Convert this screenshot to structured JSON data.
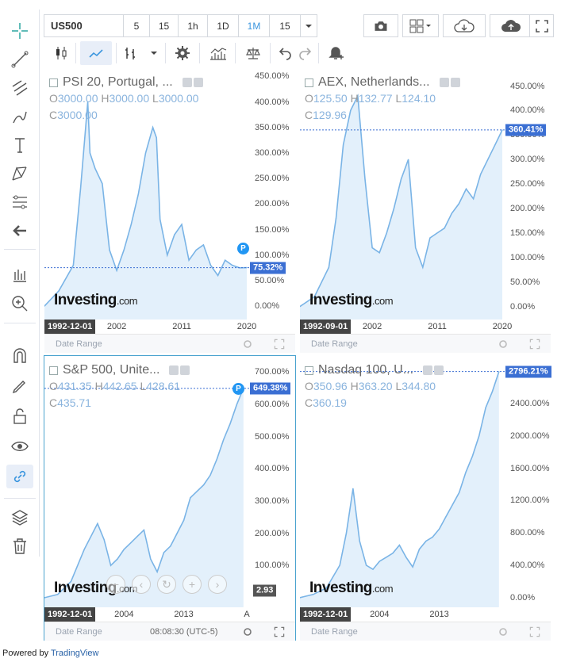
{
  "toolbar": {
    "symbol": "US500",
    "intervals": [
      "5",
      "15",
      "1h",
      "1D",
      "1M"
    ],
    "active_interval": "1M",
    "compare_label": "15",
    "icons": {
      "snapshot": "camera-icon",
      "layout": "grid-layout-icon",
      "load": "cloud-download-icon",
      "save": "cloud-upload-icon",
      "fullscreen": "fullscreen-icon",
      "candles": "candlestick-icon",
      "area": "area-chart-icon",
      "bars": "bars-icon",
      "settings": "gear-icon",
      "indicators": "indicators-icon",
      "compare": "scales-icon",
      "undo": "undo-icon",
      "redo": "redo-icon",
      "alert": "add-alert-icon"
    }
  },
  "left_tools": [
    "crosshair-icon",
    "trend-line-icon",
    "fib-icon",
    "brush-icon",
    "text-icon",
    "pattern-icon",
    "measure-icon",
    "back-arrow-icon",
    "zoom-bars-icon",
    "zoom-in-icon",
    "magnet-icon",
    "lock-edit-icon",
    "unlock-icon",
    "eye-icon",
    "link-icon",
    "layers-icon",
    "trash-icon"
  ],
  "panes": [
    {
      "title": "PSI 20, Portugal, ...",
      "ohlc": {
        "O": "3000.00",
        "H": "3000.00",
        "L": "3000.00",
        "C": "3000.00"
      },
      "last_value_label": "75.32%",
      "x_start_label": "1992-12-01",
      "date_range_label": "Date Range",
      "logo": "Investing",
      "logo_suffix": ".com",
      "show_p_badge": true,
      "p_badge": "P"
    },
    {
      "title": "AEX, Netherlands...",
      "ohlc": {
        "O": "125.50",
        "H": "132.77",
        "L": "124.10",
        "C": "129.96"
      },
      "last_value_label": "360.41%",
      "x_start_label": "1992-09-01",
      "date_range_label": "Date Range",
      "logo": "Investing",
      "logo_suffix": ".com",
      "show_p_badge": false
    },
    {
      "title": "S&P 500, Unite...",
      "ohlc": {
        "O": "431.35",
        "H": "442.65",
        "L": "428.61",
        "C": "435.71"
      },
      "last_value_label": "649.38%",
      "crosshair_label": "2.93",
      "x_start_label": "1992-12-01",
      "date_range_label": "Date Range",
      "time_label": "08:08:30 (UTC-5)",
      "extra_x_label": "A",
      "logo": "Investing",
      "logo_suffix": ".com",
      "show_p_badge": true,
      "p_badge": "P"
    },
    {
      "title": "Nasdaq 100, U...",
      "ohlc": {
        "O": "350.96",
        "H": "363.20",
        "L": "344.80",
        "C": "360.19"
      },
      "last_value_label": "2796.21%",
      "x_start_label": "1992-12-01",
      "date_range_label": "Date Range",
      "logo": "Investing",
      "logo_suffix": ".com",
      "show_p_badge": false
    }
  ],
  "chart_data": [
    {
      "type": "area",
      "title": "PSI 20, Portugal, ...",
      "x": [
        1992,
        1994,
        1996,
        1997,
        1998,
        1998.3,
        1999,
        2000,
        2001,
        2002,
        2003,
        2004,
        2005,
        2006,
        2007,
        2007.5,
        2008,
        2009,
        2010,
        2011,
        2012,
        2013,
        2014,
        2015,
        2016,
        2017,
        2018,
        2019,
        2020
      ],
      "y": [
        0,
        30,
        80,
        230,
        400,
        300,
        270,
        240,
        110,
        70,
        110,
        160,
        220,
        300,
        350,
        330,
        170,
        100,
        140,
        160,
        90,
        110,
        120,
        80,
        60,
        90,
        80,
        75,
        75.32
      ],
      "y_ticks": [
        "0.00%",
        "50.00%",
        "100.00%",
        "150.00%",
        "200.00%",
        "250.00%",
        "300.00%",
        "350.00%",
        "400.00%",
        "450.00%"
      ],
      "ylim": [
        -20,
        460
      ],
      "x_ticks": [
        {
          "year": 2002,
          "label": "2002"
        },
        {
          "year": 2011,
          "label": "2011"
        },
        {
          "year": 2020,
          "label": "2020"
        }
      ],
      "xlim": [
        1992,
        2020
      ],
      "last_value": 75.32,
      "color": "#7ab4e6"
    },
    {
      "type": "area",
      "title": "AEX, Netherlands...",
      "x": [
        1992,
        1994,
        1996,
        1997,
        1998,
        1999,
        2000,
        2001,
        2002,
        2003,
        2004,
        2005,
        2006,
        2007,
        2008,
        2009,
        2010,
        2011,
        2012,
        2013,
        2014,
        2015,
        2016,
        2017,
        2018,
        2019,
        2020
      ],
      "y": [
        0,
        20,
        80,
        180,
        330,
        400,
        430,
        260,
        120,
        110,
        150,
        200,
        260,
        300,
        120,
        80,
        140,
        150,
        160,
        190,
        210,
        240,
        220,
        270,
        300,
        330,
        360.41
      ],
      "y_ticks": [
        "0.00%",
        "50.00%",
        "100.00%",
        "150.00%",
        "200.00%",
        "250.00%",
        "300.00%",
        "350.00%",
        "400.00%",
        "450.00%"
      ],
      "ylim": [
        -20,
        480
      ],
      "x_ticks": [
        {
          "year": 2002,
          "label": "2002"
        },
        {
          "year": 2011,
          "label": "2011"
        },
        {
          "year": 2020,
          "label": "2020"
        }
      ],
      "xlim": [
        1992,
        2020
      ],
      "last_value": 360.41,
      "color": "#7ab4e6"
    },
    {
      "type": "area",
      "title": "S&P 500, Unite...",
      "x": [
        1992,
        1994,
        1996,
        1998,
        2000,
        2001,
        2002,
        2003,
        2004,
        2005,
        2006,
        2007,
        2008,
        2009,
        2010,
        2011,
        2012,
        2013,
        2014,
        2015,
        2016,
        2017,
        2018,
        2019,
        2020,
        2021,
        2022
      ],
      "y": [
        0,
        10,
        50,
        150,
        230,
        180,
        100,
        120,
        150,
        170,
        190,
        210,
        120,
        80,
        140,
        160,
        200,
        240,
        310,
        330,
        350,
        380,
        430,
        490,
        540,
        600,
        649.38
      ],
      "y_ticks": [
        "100.00%",
        "200.00%",
        "300.00%",
        "400.00%",
        "500.00%",
        "600.00%",
        "700.00%"
      ],
      "ylim": [
        -20,
        740
      ],
      "x_ticks": [
        {
          "year": 2004,
          "label": "2004"
        },
        {
          "year": 2013,
          "label": "2013"
        }
      ],
      "xlim": [
        1992,
        2022.5
      ],
      "last_value": 649.38,
      "color": "#7ab4e6"
    },
    {
      "type": "area",
      "title": "Nasdaq 100, U...",
      "x": [
        1992,
        1994,
        1996,
        1998,
        1999,
        2000,
        2001,
        2002,
        2003,
        2004,
        2005,
        2006,
        2007,
        2008,
        2009,
        2010,
        2011,
        2012,
        2013,
        2014,
        2015,
        2016,
        2017,
        2018,
        2019,
        2020,
        2021,
        2022
      ],
      "y": [
        0,
        40,
        120,
        400,
        800,
        1350,
        700,
        400,
        350,
        450,
        500,
        550,
        650,
        500,
        380,
        600,
        700,
        750,
        850,
        1000,
        1150,
        1300,
        1550,
        1750,
        2000,
        2350,
        2550,
        2796.21
      ],
      "y_ticks": [
        "0.00%",
        "400.00%",
        "800.00%",
        "1200.00%",
        "1600.00%",
        "2000.00%",
        "2400.00%"
      ],
      "ylim": [
        -80,
        2950
      ],
      "x_ticks": [
        {
          "year": 2004,
          "label": "2004"
        },
        {
          "year": 2013,
          "label": "2013"
        }
      ],
      "xlim": [
        1992,
        2022.5
      ],
      "last_value": 2796.21,
      "color": "#7ab4e6"
    }
  ],
  "powered": {
    "prefix": "Powered by ",
    "link": "TradingView"
  }
}
